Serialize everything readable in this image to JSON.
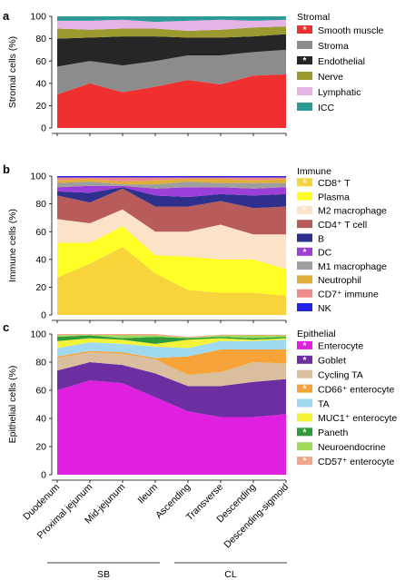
{
  "figure": {
    "group_labels": [
      {
        "label": "SB",
        "categories": [
          "Duodenum",
          "Proximal jejunum",
          "Mid-jejunum",
          "Ileum"
        ]
      },
      {
        "label": "CL",
        "categories": [
          "Ascending",
          "Transverse",
          "Descending",
          "Descending-sigmoid"
        ]
      }
    ]
  },
  "chart_data": [
    {
      "type": "area",
      "stacked": true,
      "panel_letter": "a",
      "ylabel": "Stromal cells (%)",
      "xlabel": "",
      "ylim": [
        0,
        100
      ],
      "yticks": [
        0,
        20,
        40,
        60,
        80,
        100
      ],
      "legend_title": "Stromal",
      "legend_position": "right",
      "categories": [
        "Duodenum",
        "Proximal jejunum",
        "Mid-jejunum",
        "Ileum",
        "Ascending",
        "Transverse",
        "Descending",
        "Descending-sigmoid"
      ],
      "series": [
        {
          "name": "Smooth muscle",
          "color": "#f03030",
          "marker": "*",
          "values": [
            30,
            40,
            32,
            37,
            43,
            39,
            47,
            48
          ]
        },
        {
          "name": "Stroma",
          "color": "#8c8c8c",
          "values": [
            25,
            20,
            24,
            23,
            22,
            26,
            21,
            22
          ]
        },
        {
          "name": "Endothelial",
          "color": "#262626",
          "marker": "*",
          "values": [
            25,
            21,
            26,
            22,
            16,
            16,
            14,
            14
          ]
        },
        {
          "name": "Nerve",
          "color": "#9a9a2e",
          "values": [
            9,
            7,
            7,
            7,
            6,
            7,
            8,
            7
          ]
        },
        {
          "name": "Lymphatic",
          "color": "#e6b3e6",
          "values": [
            7,
            8,
            8,
            6,
            9,
            9,
            6,
            6
          ]
        },
        {
          "name": "ICC",
          "color": "#2e9a96",
          "values": [
            4,
            4,
            3,
            5,
            4,
            3,
            4,
            3
          ]
        }
      ]
    },
    {
      "type": "area",
      "stacked": true,
      "panel_letter": "b",
      "ylabel": "Immune cells (%)",
      "xlabel": "",
      "ylim": [
        0,
        100
      ],
      "yticks": [
        0,
        20,
        40,
        60,
        80,
        100
      ],
      "legend_title": "Immune",
      "legend_position": "right",
      "categories": [
        "Duodenum",
        "Proximal jejunum",
        "Mid-jejunum",
        "Ileum",
        "Ascending",
        "Transverse",
        "Descending",
        "Descending-sigmoid"
      ],
      "series": [
        {
          "name": "CD8⁺ T",
          "color": "#f7d43a",
          "marker": "*",
          "values": [
            27,
            37,
            49,
            30,
            18,
            16,
            16,
            14
          ]
        },
        {
          "name": "Plasma",
          "color": "#ffff26",
          "values": [
            25,
            15,
            15,
            13,
            24,
            24,
            24,
            19
          ]
        },
        {
          "name": "M2 macrophage",
          "color": "#fbe3c8",
          "marker": "*",
          "values": [
            17,
            14,
            12,
            17,
            18,
            25,
            18,
            25
          ]
        },
        {
          "name": "CD4⁺ T cell",
          "color": "#b85b5b",
          "values": [
            17,
            15,
            15,
            18,
            18,
            17,
            19,
            20
          ]
        },
        {
          "name": "B",
          "color": "#2f2f8c",
          "values": [
            3,
            7,
            1,
            8,
            7,
            5,
            9,
            9
          ]
        },
        {
          "name": "DC",
          "color": "#9b3fd8",
          "marker": "*",
          "values": [
            3,
            5,
            1,
            5,
            7,
            5,
            5,
            5
          ]
        },
        {
          "name": "M1 macrophage",
          "color": "#9e9e9e",
          "values": [
            3,
            3,
            1,
            3,
            4,
            3,
            4,
            3
          ]
        },
        {
          "name": "Neutrophil",
          "color": "#e0ac3a",
          "values": [
            2,
            2,
            2,
            3,
            2,
            3,
            2,
            3
          ]
        },
        {
          "name": "CD7⁺ immune",
          "color": "#f08a8a",
          "values": [
            2,
            1,
            3,
            2,
            1,
            1,
            2,
            1
          ]
        },
        {
          "name": "NK",
          "color": "#2424e6",
          "values": [
            1,
            1,
            1,
            1,
            1,
            1,
            1,
            1
          ]
        }
      ]
    },
    {
      "type": "area",
      "stacked": true,
      "panel_letter": "c",
      "ylabel": "Epithelial cells (%)",
      "xlabel": "",
      "ylim": [
        0,
        100
      ],
      "yticks": [
        0,
        20,
        40,
        60,
        80,
        100
      ],
      "legend_title": "Epithelial",
      "legend_position": "right",
      "categories": [
        "Duodenum",
        "Proximal jejunum",
        "Mid-jejunum",
        "Ileum",
        "Ascending",
        "Transverse",
        "Descending",
        "Descending-sigmoid"
      ],
      "series": [
        {
          "name": "Enterocyte",
          "color": "#e020e0",
          "marker": "*",
          "values": [
            60,
            67,
            65,
            55,
            45,
            41,
            41,
            43
          ]
        },
        {
          "name": "Goblet",
          "color": "#6c2ea0",
          "marker": "*",
          "values": [
            14,
            13,
            13,
            17,
            18,
            22,
            25,
            25
          ]
        },
        {
          "name": "Cycling TA",
          "color": "#d9bf9e",
          "values": [
            9,
            7,
            8,
            10,
            8,
            10,
            14,
            11
          ]
        },
        {
          "name": "CD66⁺ enterocyte",
          "color": "#f7a33a",
          "marker": "*",
          "values": [
            1,
            1,
            1,
            1,
            13,
            16,
            9,
            10
          ]
        },
        {
          "name": "TA",
          "color": "#9fd9f0",
          "values": [
            6,
            6,
            6,
            8,
            6,
            6,
            6,
            7
          ]
        },
        {
          "name": "MUC1⁺ enterocyte",
          "color": "#f2f23a",
          "values": [
            5,
            3,
            3,
            2,
            6,
            2,
            1,
            1
          ]
        },
        {
          "name": "Paneth",
          "color": "#2e9a3a",
          "marker": "*",
          "values": [
            3,
            2,
            1,
            5,
            1,
            1,
            1,
            1
          ]
        },
        {
          "name": "Neuroendocrine",
          "color": "#9fd95a",
          "values": [
            1,
            0.5,
            2,
            1,
            0.5,
            1,
            2,
            1
          ]
        },
        {
          "name": "CD57⁺ enterocyte",
          "color": "#f2a58a",
          "marker": "*",
          "values": [
            1,
            0.5,
            1,
            1,
            0.5,
            0.5,
            0.5,
            0.5
          ]
        }
      ]
    }
  ]
}
